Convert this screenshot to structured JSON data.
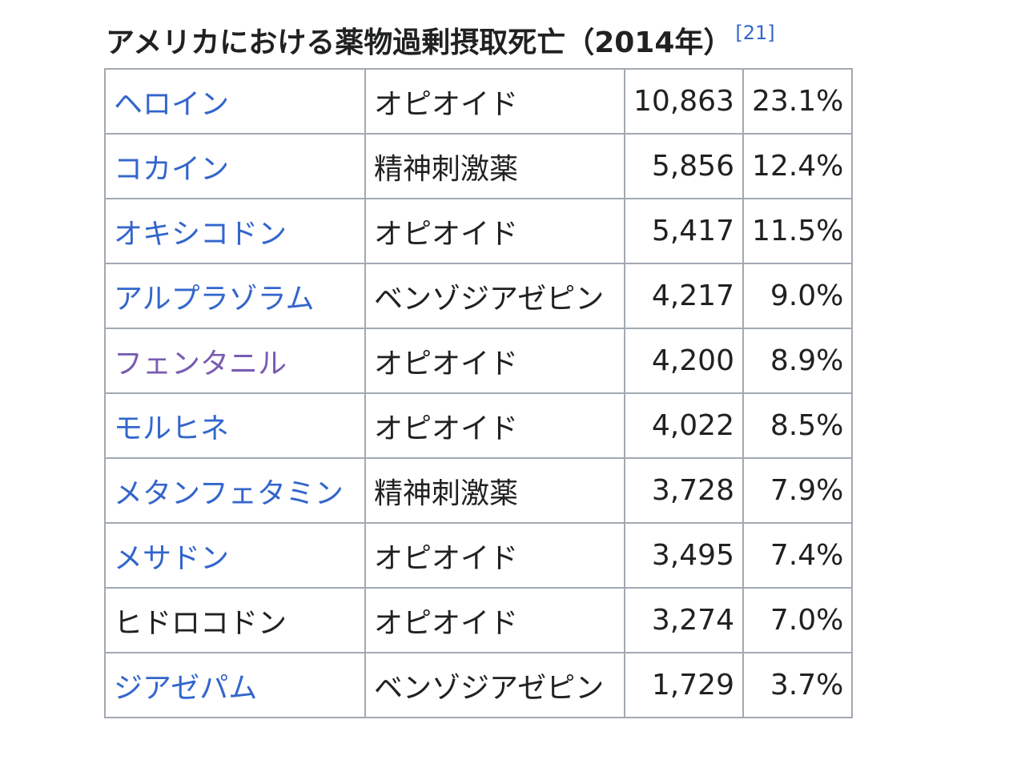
{
  "caption": {
    "title": "アメリカにおける薬物過剰摂取死亡（2014年）",
    "ref": "[21]"
  },
  "colors": {
    "link": "#3366cc",
    "visited_link": "#795cb2",
    "text": "#202122",
    "border": "#a2a9b1"
  },
  "rows": [
    {
      "drug": "ヘロイン",
      "link_state": "link",
      "drug_class": "オピオイド",
      "deaths": "10,863",
      "percent": "23.1%"
    },
    {
      "drug": "コカイン",
      "link_state": "link",
      "drug_class": "精神刺激薬",
      "deaths": "5,856",
      "percent": "12.4%"
    },
    {
      "drug": "オキシコドン",
      "link_state": "link",
      "drug_class": "オピオイド",
      "deaths": "5,417",
      "percent": "11.5%"
    },
    {
      "drug": "アルプラゾラム",
      "link_state": "link",
      "drug_class": "ベンゾジアゼピン",
      "deaths": "4,217",
      "percent": "9.0%"
    },
    {
      "drug": "フェンタニル",
      "link_state": "visited",
      "drug_class": "オピオイド",
      "deaths": "4,200",
      "percent": "8.9%"
    },
    {
      "drug": "モルヒネ",
      "link_state": "link",
      "drug_class": "オピオイド",
      "deaths": "4,022",
      "percent": "8.5%"
    },
    {
      "drug": "メタンフェタミン",
      "link_state": "link",
      "drug_class": "精神刺激薬",
      "deaths": "3,728",
      "percent": "7.9%"
    },
    {
      "drug": "メサドン",
      "link_state": "link",
      "drug_class": "オピオイド",
      "deaths": "3,495",
      "percent": "7.4%"
    },
    {
      "drug": "ヒドロコドン",
      "link_state": "none",
      "drug_class": "オピオイド",
      "deaths": "3,274",
      "percent": "7.0%"
    },
    {
      "drug": "ジアゼパム",
      "link_state": "link",
      "drug_class": "ベンゾジアゼピン",
      "deaths": "1,729",
      "percent": "3.7%"
    }
  ]
}
